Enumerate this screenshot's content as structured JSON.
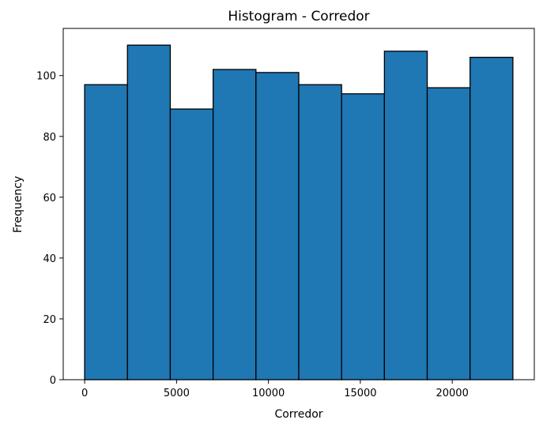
{
  "chart_data": {
    "type": "bar",
    "subtype": "histogram",
    "title": "Histogram - Corredor",
    "xlabel": "Corredor",
    "ylabel": "Frequency",
    "bin_edges": [
      0,
      2330,
      4660,
      6990,
      9320,
      11650,
      13980,
      16310,
      18640,
      20970,
      23300
    ],
    "values": [
      97,
      110,
      89,
      102,
      101,
      97,
      94,
      108,
      96,
      106
    ],
    "xlim": [
      -1165,
      24465
    ],
    "ylim": [
      0,
      115.5
    ],
    "x_ticks": [
      0,
      5000,
      10000,
      15000,
      20000
    ],
    "x_tick_labels": [
      "0",
      "5000",
      "10000",
      "15000",
      "20000"
    ],
    "y_ticks": [
      0,
      20,
      40,
      60,
      80,
      100
    ],
    "y_tick_labels": [
      "0",
      "20",
      "40",
      "60",
      "80",
      "100"
    ],
    "bar_color": "#1f77b4",
    "edge_color": "#000000",
    "grid": false,
    "legend": "none"
  }
}
